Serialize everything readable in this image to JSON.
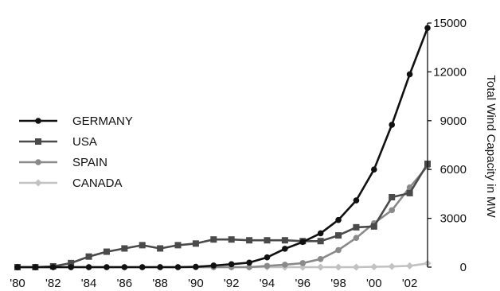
{
  "chart_data": {
    "type": "line",
    "ylabel": "Total Wind Capacity in MW",
    "ylim": [
      0,
      15000
    ],
    "yticks": [
      0,
      3000,
      6000,
      9000,
      12000,
      15000
    ],
    "xlim": [
      1980,
      2003
    ],
    "xticks": [
      1980,
      1982,
      1984,
      1986,
      1988,
      1990,
      1992,
      1994,
      1996,
      1998,
      2000,
      2002
    ],
    "xtick_labels": [
      "'80",
      "'82",
      "'84",
      "'86",
      "'88",
      "'90",
      "'92",
      "'94",
      "'96",
      "'98",
      "'00",
      "'02"
    ],
    "y_axis_position": "right",
    "grid": false,
    "legend_position": "left",
    "x": [
      1980,
      1981,
      1982,
      1983,
      1984,
      1985,
      1986,
      1987,
      1988,
      1989,
      1990,
      1991,
      1992,
      1993,
      1994,
      1995,
      1996,
      1997,
      1998,
      1999,
      2000,
      2001,
      2002,
      2003
    ],
    "series": [
      {
        "name": "GERMANY",
        "marker": "circle",
        "color": "#111111",
        "values": [
          0,
          0,
          0,
          0,
          0,
          0,
          0,
          0,
          0,
          0,
          20,
          100,
          180,
          280,
          600,
          1130,
          1550,
          2080,
          2900,
          4100,
          6000,
          8750,
          11850,
          14700
        ]
      },
      {
        "name": "USA",
        "marker": "square",
        "color": "#4a4a4a",
        "values": [
          0,
          0,
          50,
          250,
          650,
          950,
          1150,
          1350,
          1150,
          1350,
          1450,
          1700,
          1700,
          1650,
          1650,
          1650,
          1600,
          1600,
          1950,
          2450,
          2500,
          4300,
          4550,
          6350
        ]
      },
      {
        "name": "SPAIN",
        "marker": "circle",
        "color": "#8a8a8a",
        "values": [
          0,
          0,
          0,
          0,
          0,
          0,
          0,
          0,
          0,
          0,
          0,
          0,
          0,
          0,
          80,
          150,
          250,
          500,
          1050,
          1800,
          2700,
          3500,
          4900,
          6200
        ]
      },
      {
        "name": "CANADA",
        "marker": "diamond",
        "color": "#c2c2c2",
        "values": [
          0,
          0,
          0,
          0,
          0,
          0,
          0,
          0,
          0,
          0,
          0,
          0,
          0,
          0,
          0,
          0,
          0,
          0,
          0,
          0,
          20,
          40,
          80,
          230
        ]
      }
    ]
  }
}
